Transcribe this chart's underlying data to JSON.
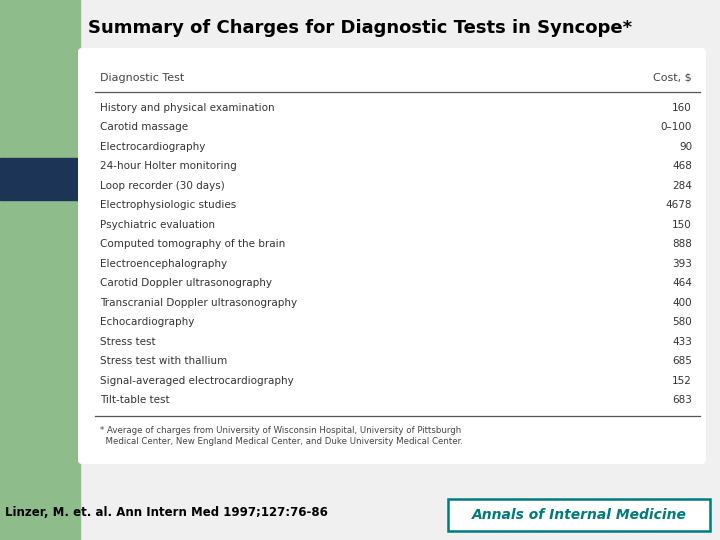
{
  "title": "Summary of Charges for Diagnostic Tests in Syncope*",
  "col_header_left": "Diagnostic Test",
  "col_header_right": "Cost, $",
  "rows": [
    [
      "History and physical examination",
      "160"
    ],
    [
      "Carotid massage",
      "0–100"
    ],
    [
      "Electrocardiography",
      "90"
    ],
    [
      "24-hour Holter monitoring",
      "468"
    ],
    [
      "Loop recorder (30 days)",
      "284"
    ],
    [
      "Electrophysiologic studies",
      "4678"
    ],
    [
      "Psychiatric evaluation",
      "150"
    ],
    [
      "Computed tomography of the brain",
      "888"
    ],
    [
      "Electroencephalography",
      "393"
    ],
    [
      "Carotid Doppler ultrasonography",
      "464"
    ],
    [
      "Transcranial Doppler ultrasonography",
      "400"
    ],
    [
      "Echocardiography",
      "580"
    ],
    [
      "Stress test",
      "433"
    ],
    [
      "Stress test with thallium",
      "685"
    ],
    [
      "Signal-averaged electrocardiography",
      "152"
    ],
    [
      "Tilt-table test",
      "683"
    ]
  ],
  "footnote_line1": "* Average of charges from University of Wisconsin Hospital, University of Pittsburgh",
  "footnote_line2": "  Medical Center, New England Medical Center, and Duke University Medical Center.",
  "citation": "Linzer, M. et. al. Ann Intern Med 1997;127:76-86",
  "journal": "Annals of Internal Medicine",
  "bg_color": "#f0f0f0",
  "sidebar_color": "#8fbc8b",
  "blue_tab_color": "#1c3557",
  "table_bg": "#ffffff",
  "title_color": "#000000",
  "header_text_color": "#444444",
  "row_text_color": "#333333",
  "footnote_color": "#444444",
  "citation_color": "#000000",
  "journal_color": "#007b7b",
  "journal_border_color": "#007b7b",
  "line_color": "#555555"
}
